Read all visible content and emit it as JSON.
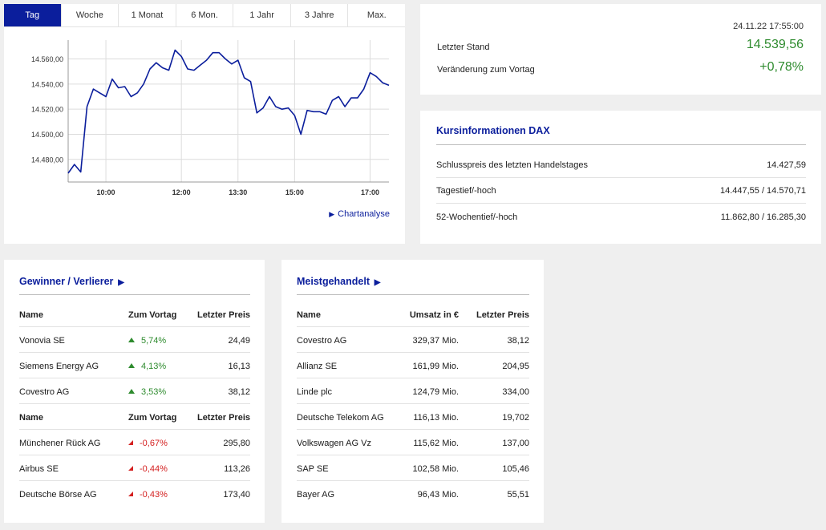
{
  "tabs": [
    "Tag",
    "Woche",
    "1 Monat",
    "6 Mon.",
    "1 Jahr",
    "3 Jahre",
    "Max."
  ],
  "active_tab": "Tag",
  "chart_link": "Chartanalyse",
  "chart_data": {
    "type": "line",
    "title": "",
    "xlabel": "",
    "ylabel": "",
    "x_ticks": [
      "10:00",
      "12:00",
      "13:30",
      "15:00",
      "17:00"
    ],
    "y_ticks": [
      "14.480,00",
      "14.500,00",
      "14.520,00",
      "14.540,00",
      "14.560,00"
    ],
    "ylim": [
      14462,
      14575
    ],
    "xlim": [
      "09:00",
      "17:30"
    ],
    "grid": true,
    "color": "#0b1e9c",
    "x": [
      "09:00",
      "09:10",
      "09:20",
      "09:30",
      "09:40",
      "09:50",
      "10:00",
      "10:10",
      "10:20",
      "10:30",
      "10:40",
      "10:50",
      "11:00",
      "11:10",
      "11:20",
      "11:30",
      "11:40",
      "11:50",
      "12:00",
      "12:10",
      "12:20",
      "12:30",
      "12:40",
      "12:50",
      "13:00",
      "13:10",
      "13:20",
      "13:30",
      "13:40",
      "13:50",
      "14:00",
      "14:10",
      "14:20",
      "14:30",
      "14:40",
      "14:50",
      "15:00",
      "15:10",
      "15:20",
      "15:30",
      "15:40",
      "15:50",
      "16:00",
      "16:10",
      "16:20",
      "16:30",
      "16:40",
      "16:50",
      "17:00",
      "17:10",
      "17:20",
      "17:30"
    ],
    "values": [
      14469,
      14476,
      14470,
      14522,
      14536,
      14533,
      14530,
      14544,
      14537,
      14538,
      14530,
      14533,
      14540,
      14552,
      14557,
      14553,
      14551,
      14567,
      14562,
      14552,
      14551,
      14555,
      14559,
      14565,
      14565,
      14560,
      14556,
      14559,
      14545,
      14542,
      14517,
      14521,
      14530,
      14522,
      14520,
      14521,
      14515,
      14500,
      14519,
      14518,
      14518,
      14516,
      14527,
      14530,
      14522,
      14529,
      14529,
      14536,
      14549,
      14546,
      14541,
      14539
    ]
  },
  "quote": {
    "timestamp": "24.11.22 17:55:00",
    "last_label": "Letzter Stand",
    "last_value": "14.539,56",
    "change_label": "Veränderung zum Vortag",
    "change_value": "+0,78%",
    "positive_color": "#2e8b2e"
  },
  "info": {
    "title": "Kursinformationen DAX",
    "rows": [
      {
        "label": "Schlusspreis des letzten Handelstages",
        "value": "14.427,59"
      },
      {
        "label": "Tagestief/-hoch",
        "value": "14.447,55 / 14.570,71"
      },
      {
        "label": "52-Wochentief/-hoch",
        "value": "11.862,80 / 16.285,30"
      }
    ]
  },
  "gainers_losers": {
    "title": "Gewinner / Verlierer",
    "headers": {
      "name": "Name",
      "change": "Zum Vortag",
      "price": "Letzter Preis"
    },
    "gainers": [
      {
        "name": "Vonovia SE",
        "change": "5,74%",
        "price": "24,49"
      },
      {
        "name": "Siemens Energy AG",
        "change": "4,13%",
        "price": "16,13"
      },
      {
        "name": "Covestro AG",
        "change": "3,53%",
        "price": "38,12"
      }
    ],
    "losers": [
      {
        "name": "Münchener Rück AG",
        "change": "-0,67%",
        "price": "295,80"
      },
      {
        "name": "Airbus SE",
        "change": "-0,44%",
        "price": "113,26"
      },
      {
        "name": "Deutsche Börse AG",
        "change": "-0,43%",
        "price": "173,40"
      }
    ]
  },
  "most_traded": {
    "title": "Meistgehandelt",
    "headers": {
      "name": "Name",
      "volume": "Umsatz in €",
      "price": "Letzter Preis"
    },
    "rows": [
      {
        "name": "Covestro AG",
        "volume": "329,37 Mio.",
        "price": "38,12"
      },
      {
        "name": "Allianz SE",
        "volume": "161,99 Mio.",
        "price": "204,95"
      },
      {
        "name": "Linde plc",
        "volume": "124,79 Mio.",
        "price": "334,00"
      },
      {
        "name": "Deutsche Telekom AG",
        "volume": "116,13 Mio.",
        "price": "19,702"
      },
      {
        "name": "Volkswagen AG Vz",
        "volume": "115,62 Mio.",
        "price": "137,00"
      },
      {
        "name": "SAP SE",
        "volume": "102,58 Mio.",
        "price": "105,46"
      },
      {
        "name": "Bayer AG",
        "volume": "96,43 Mio.",
        "price": "55,51"
      }
    ]
  }
}
